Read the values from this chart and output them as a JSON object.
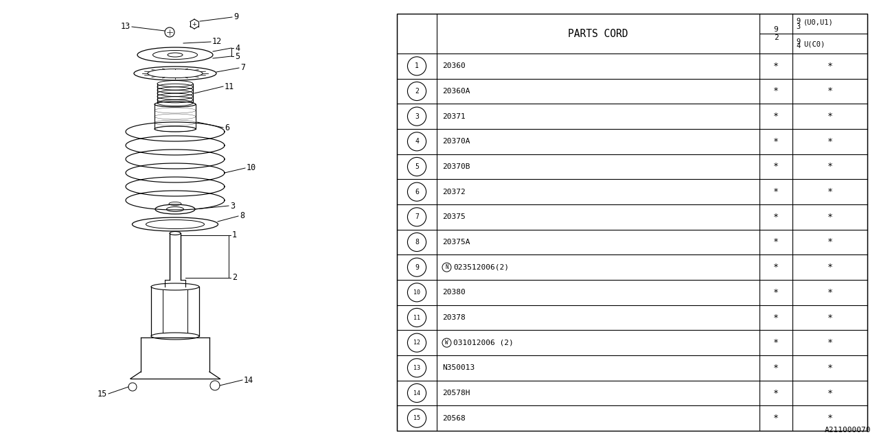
{
  "bg_color": "#ffffff",
  "parts_code_header": "PARTS CORD",
  "watermark": "A211000070",
  "line_color": "#000000",
  "text_color": "#000000",
  "rows": [
    {
      "num": "1",
      "code": "20360",
      "special": "",
      "c1": "*",
      "c2": "*"
    },
    {
      "num": "2",
      "code": "20360A",
      "special": "",
      "c1": "*",
      "c2": "*"
    },
    {
      "num": "3",
      "code": "20371",
      "special": "",
      "c1": "*",
      "c2": "*"
    },
    {
      "num": "4",
      "code": "20370A",
      "special": "",
      "c1": "*",
      "c2": "*"
    },
    {
      "num": "5",
      "code": "20370B",
      "special": "",
      "c1": "*",
      "c2": "*"
    },
    {
      "num": "6",
      "code": "20372",
      "special": "",
      "c1": "*",
      "c2": "*"
    },
    {
      "num": "7",
      "code": "20375",
      "special": "",
      "c1": "*",
      "c2": "*"
    },
    {
      "num": "8",
      "code": "20375A",
      "special": "",
      "c1": "*",
      "c2": "*"
    },
    {
      "num": "9",
      "code": "023512006(2)",
      "special": "N",
      "c1": "*",
      "c2": "*"
    },
    {
      "num": "10",
      "code": "20380",
      "special": "",
      "c1": "*",
      "c2": "*"
    },
    {
      "num": "11",
      "code": "20378",
      "special": "",
      "c1": "*",
      "c2": "*"
    },
    {
      "num": "12",
      "code": "031012006 (2)",
      "special": "W",
      "c1": "*",
      "c2": "*"
    },
    {
      "num": "13",
      "code": "N350013",
      "special": "",
      "c1": "*",
      "c2": "*"
    },
    {
      "num": "14",
      "code": "20578H",
      "special": "",
      "c1": "*",
      "c2": "*"
    },
    {
      "num": "15",
      "code": "20568",
      "special": "",
      "c1": "*",
      "c2": "*"
    }
  ]
}
